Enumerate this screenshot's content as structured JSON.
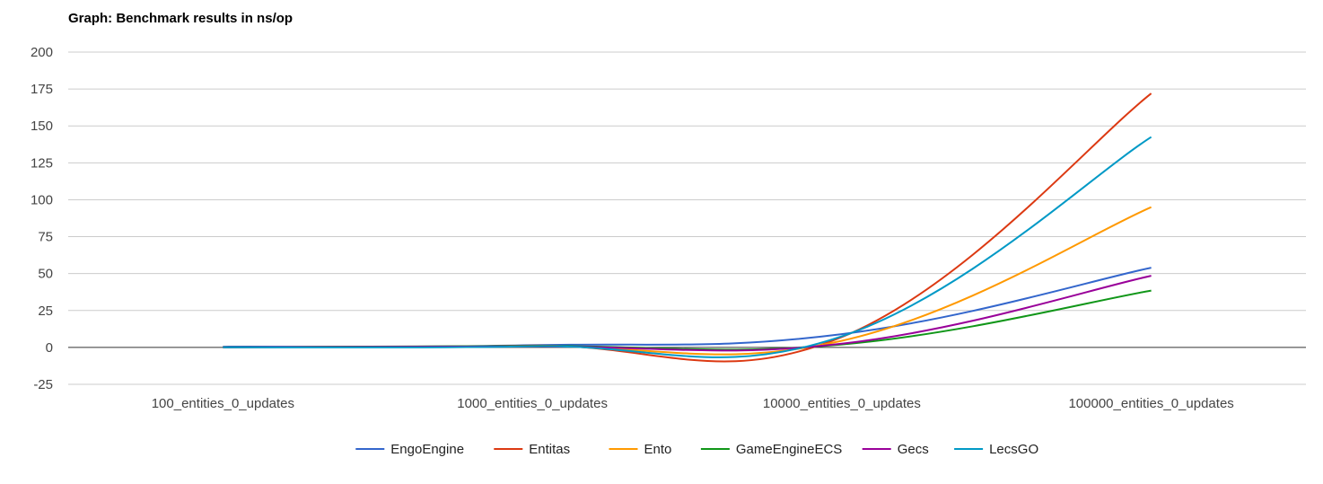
{
  "chart_data": {
    "type": "line",
    "title": "Graph: Benchmark results in ns/op",
    "xlabel": "",
    "ylabel": "",
    "ylim": [
      -25,
      200
    ],
    "yticks": [
      200,
      175,
      150,
      125,
      100,
      75,
      50,
      25,
      0,
      -25
    ],
    "categories": [
      "100_entities_0_updates",
      "1000_entities_0_updates",
      "10000_entities_0_updates",
      "100000_entities_0_updates"
    ],
    "legend_position": "bottom",
    "series": [
      {
        "name": "EngoEngine",
        "color": "#3366cc",
        "values": [
          0.5,
          1.5,
          9,
          54
        ]
      },
      {
        "name": "Entitas",
        "color": "#dc3912",
        "values": [
          0.2,
          1.2,
          7,
          172
        ]
      },
      {
        "name": "Ento",
        "color": "#ff9900",
        "values": [
          0.1,
          0.8,
          4.5,
          95
        ]
      },
      {
        "name": "GameEngineECS",
        "color": "#109618",
        "values": [
          0.1,
          1.0,
          2,
          38.5
        ]
      },
      {
        "name": "Gecs",
        "color": "#990099",
        "values": [
          0.1,
          0.7,
          2.5,
          48.5
        ]
      },
      {
        "name": "LecsGO",
        "color": "#0099c6",
        "values": [
          0.1,
          0.8,
          7.5,
          142.5
        ]
      }
    ]
  }
}
